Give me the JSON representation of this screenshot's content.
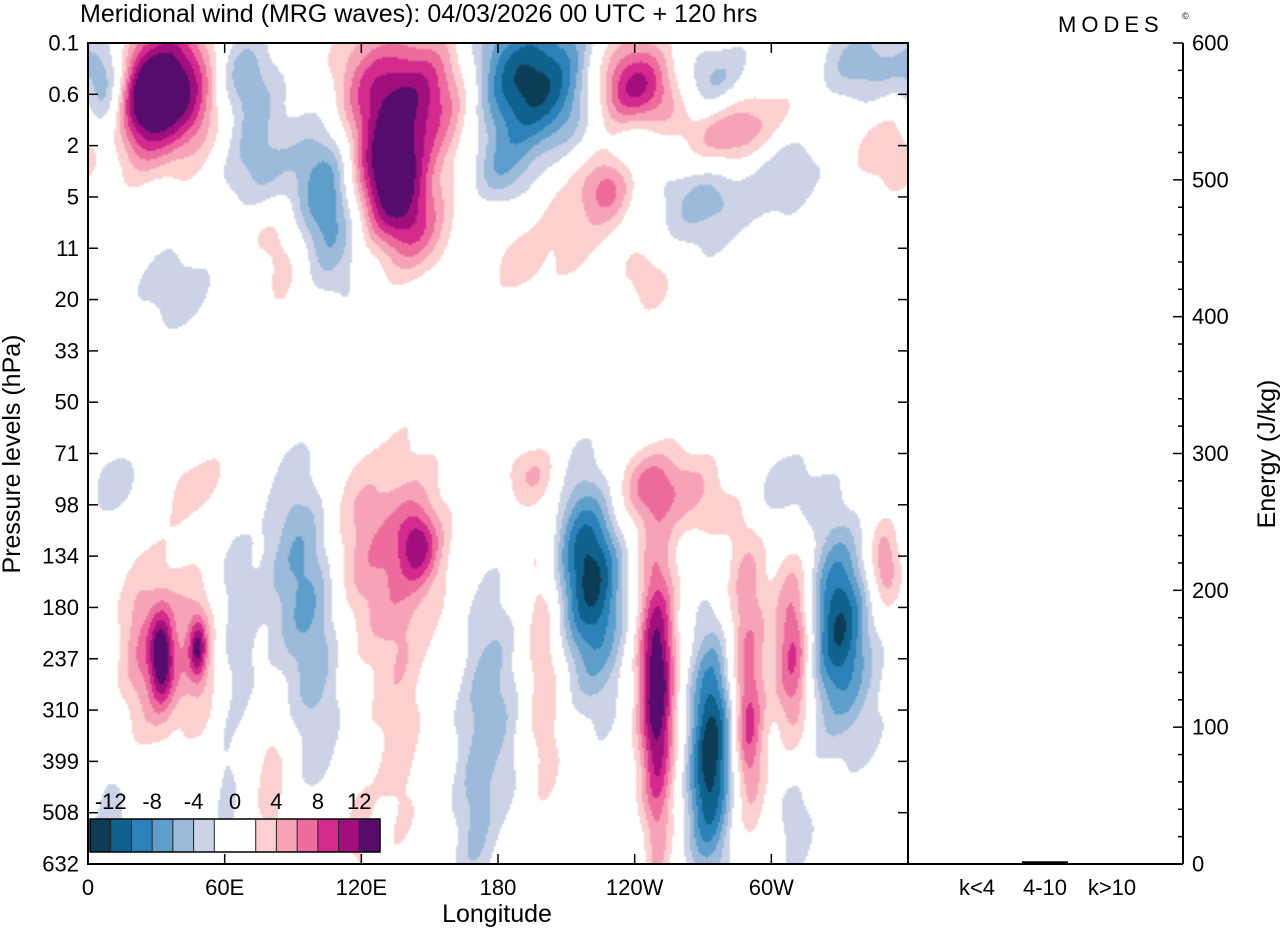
{
  "header": {
    "title": "Meridional wind (MRG waves):  04/03/2026  00 UTC  + 120 hrs",
    "brand": "MODES",
    "brand_mark": "©"
  },
  "chart_data": [
    {
      "type": "heatmap",
      "title": "Meridional wind (MRG waves):  04/03/2026  00 UTC  + 120 hrs",
      "xlabel": "Longitude",
      "ylabel": "Pressure levels (hPa)",
      "x_ticks": [
        "0",
        "60E",
        "120E",
        "180",
        "120W",
        "60W"
      ],
      "x_tick_values": [
        0,
        60,
        120,
        180,
        240,
        300
      ],
      "xlim": [
        0,
        360
      ],
      "y_levels": [
        "0.1",
        "0.6",
        "2",
        "5",
        "11",
        "20",
        "33",
        "50",
        "71",
        "98",
        "134",
        "180",
        "237",
        "310",
        "399",
        "508",
        "632"
      ],
      "colorbar": {
        "tick_labels": [
          "-12",
          "-8",
          "-4",
          "0",
          "4",
          "8",
          "12"
        ],
        "tick_values": [
          -12,
          -8,
          -4,
          0,
          4,
          8,
          12
        ],
        "bounds": [
          -14,
          -12,
          -10,
          -8,
          -6,
          -4,
          -2,
          2,
          4,
          6,
          8,
          10,
          12,
          14
        ],
        "colors": [
          "#0d3d56",
          "#10628e",
          "#2a82b8",
          "#5d9ecb",
          "#9cbad9",
          "#ccd3e6",
          "#ffffff",
          "#fbd0cf",
          "#f7a3b7",
          "#ee6c9d",
          "#d42a8d",
          "#a10f7d",
          "#560c6c"
        ],
        "location": "lower-left"
      },
      "features": [
        {
          "lon": 40,
          "lev": 0.8,
          "sx": 18,
          "sy": 0.9,
          "amp": 13
        },
        {
          "lon": 23,
          "lev": 1.2,
          "sx": 10,
          "sy": 0.8,
          "amp": 9
        },
        {
          "lon": 9,
          "lev": 1.0,
          "sx": 7,
          "sy": 0.8,
          "amp": -8
        },
        {
          "lon": 65,
          "lev": 0.6,
          "sx": 12,
          "sy": 0.7,
          "amp": -8
        },
        {
          "lon": 75,
          "lev": 2.3,
          "sx": 14,
          "sy": 1.0,
          "amp": -5
        },
        {
          "lon": 105,
          "lev": 3.0,
          "sx": 10,
          "sy": 1.2,
          "amp": -8
        },
        {
          "lon": 140,
          "lev": 1.0,
          "sx": 22,
          "sy": 0.9,
          "amp": 12
        },
        {
          "lon": 133,
          "lev": 2.7,
          "sx": 12,
          "sy": 0.8,
          "amp": 13
        },
        {
          "lon": 145,
          "lev": 3.7,
          "sx": 10,
          "sy": 0.6,
          "amp": 5
        },
        {
          "lon": 195,
          "lev": 0.8,
          "sx": 20,
          "sy": 1.0,
          "amp": -14
        },
        {
          "lon": 180,
          "lev": 2.5,
          "sx": 10,
          "sy": 0.5,
          "amp": -4
        },
        {
          "lon": 240,
          "lev": 0.9,
          "sx": 15,
          "sy": 0.7,
          "amp": 12
        },
        {
          "lon": 243,
          "lev": 1.8,
          "sx": 10,
          "sy": 0.5,
          "amp": -5
        },
        {
          "lon": 275,
          "lev": 0.9,
          "sx": 13,
          "sy": 0.6,
          "amp": -9
        },
        {
          "lon": 285,
          "lev": 1.7,
          "sx": 18,
          "sy": 0.7,
          "amp": 11
        },
        {
          "lon": 305,
          "lev": 2.2,
          "sx": 15,
          "sy": 0.6,
          "amp": -6
        },
        {
          "lon": 280,
          "lev": 2.7,
          "sx": 15,
          "sy": 0.6,
          "amp": -4
        },
        {
          "lon": 345,
          "lev": 0.4,
          "sx": 18,
          "sy": 0.6,
          "amp": -5
        },
        {
          "lon": 350,
          "lev": 2.1,
          "sx": 12,
          "sy": 0.6,
          "amp": 4
        },
        {
          "lon": 228,
          "lev": 2.8,
          "sx": 8,
          "sy": 0.5,
          "amp": 6
        },
        {
          "lon": 215,
          "lev": 3.2,
          "sx": 18,
          "sy": 1.0,
          "amp": 3
        },
        {
          "lon": 265,
          "lev": 3.2,
          "sx": 20,
          "sy": 0.7,
          "amp": -3
        },
        {
          "lon": 75,
          "lev": 3.6,
          "sx": 10,
          "sy": 0.5,
          "amp": 3
        },
        {
          "lon": 38,
          "lev": 4.8,
          "sx": 18,
          "sy": 0.6,
          "amp": -3
        },
        {
          "lon": 85,
          "lev": 4.4,
          "sx": 8,
          "sy": 0.9,
          "amp": 3
        },
        {
          "lon": 12,
          "lev": 8.6,
          "sx": 10,
          "sy": 0.5,
          "amp": -3
        },
        {
          "lon": 50,
          "lev": 8.6,
          "sx": 14,
          "sy": 0.6,
          "amp": 3
        },
        {
          "lon": 30,
          "lev": 12.0,
          "sx": 8,
          "sy": 1.2,
          "amp": 6
        },
        {
          "lon": 32,
          "lev": 12.0,
          "sx": 3.5,
          "sy": 0.6,
          "amp": 9
        },
        {
          "lon": 48,
          "lev": 11.8,
          "sx": 7,
          "sy": 1.0,
          "amp": 5
        },
        {
          "lon": 48,
          "lev": 11.8,
          "sx": 2.5,
          "sy": 0.4,
          "amp": 7
        },
        {
          "lon": 20,
          "lev": 11.5,
          "sx": 6,
          "sy": 1.2,
          "amp": 3
        },
        {
          "lon": 65,
          "lev": 11.2,
          "sx": 6,
          "sy": 1.5,
          "amp": -3
        },
        {
          "lon": 92,
          "lev": 10.3,
          "sx": 12,
          "sy": 1.6,
          "amp": -6
        },
        {
          "lon": 100,
          "lev": 13.0,
          "sx": 8,
          "sy": 2.0,
          "amp": -3
        },
        {
          "lon": 130,
          "lev": 9.8,
          "sx": 18,
          "sy": 1.4,
          "amp": 6
        },
        {
          "lon": 145,
          "lev": 9.8,
          "sx": 6,
          "sy": 0.5,
          "amp": 7
        },
        {
          "lon": 138,
          "lev": 13.0,
          "sx": 8,
          "sy": 2.0,
          "amp": 3
        },
        {
          "lon": 175,
          "lev": 13.0,
          "sx": 10,
          "sy": 1.8,
          "amp": -5
        },
        {
          "lon": 170,
          "lev": 15.5,
          "sx": 6,
          "sy": 1.2,
          "amp": -3
        },
        {
          "lon": 200,
          "lev": 12.0,
          "sx": 6,
          "sy": 2.5,
          "amp": 4
        },
        {
          "lon": 222,
          "lev": 10.5,
          "sx": 10,
          "sy": 1.5,
          "amp": -11
        },
        {
          "lon": 215,
          "lev": 9.5,
          "sx": 12,
          "sy": 1.0,
          "amp": -4
        },
        {
          "lon": 230,
          "lev": 9.0,
          "sx": 20,
          "sy": 0.8,
          "amp": 3
        },
        {
          "lon": 250,
          "lev": 12.3,
          "sx": 6,
          "sy": 1.7,
          "amp": 13
        },
        {
          "lon": 250,
          "lev": 15.0,
          "sx": 4,
          "sy": 2.0,
          "amp": 3
        },
        {
          "lon": 275,
          "lev": 13.5,
          "sx": 7,
          "sy": 1.5,
          "amp": -12
        },
        {
          "lon": 270,
          "lev": 15.0,
          "sx": 6,
          "sy": 1.2,
          "amp": -4
        },
        {
          "lon": 290,
          "lev": 12.0,
          "sx": 7,
          "sy": 2.2,
          "amp": 7
        },
        {
          "lon": 290,
          "lev": 13.5,
          "sx": 4,
          "sy": 0.8,
          "amp": 4
        },
        {
          "lon": 310,
          "lev": 12.0,
          "sx": 6,
          "sy": 1.3,
          "amp": 11
        },
        {
          "lon": 325,
          "lev": 12.3,
          "sx": 18,
          "sy": 1.5,
          "amp": -4
        },
        {
          "lon": 330,
          "lev": 11.2,
          "sx": 8,
          "sy": 1.2,
          "amp": -9
        },
        {
          "lon": 350,
          "lev": 10.2,
          "sx": 5,
          "sy": 0.6,
          "amp": 6
        },
        {
          "lon": 305,
          "lev": 8.7,
          "sx": 12,
          "sy": 0.6,
          "amp": -4
        },
        {
          "lon": 270,
          "lev": 8.8,
          "sx": 10,
          "sy": 0.6,
          "amp": 3
        },
        {
          "lon": 248,
          "lev": 8.6,
          "sx": 10,
          "sy": 0.5,
          "amp": 5
        },
        {
          "lon": 195,
          "lev": 8.4,
          "sx": 10,
          "sy": 0.4,
          "amp": 3
        },
        {
          "lon": 60,
          "lev": 15.0,
          "sx": 4,
          "sy": 1.2,
          "amp": -3
        },
        {
          "lon": 10,
          "lev": 15.0,
          "sx": 6,
          "sy": 1.0,
          "amp": -3
        },
        {
          "lon": 80,
          "lev": 14.5,
          "sx": 5,
          "sy": 1.0,
          "amp": 4
        },
        {
          "lon": 118,
          "lev": 15.5,
          "sx": 6,
          "sy": 1.2,
          "amp": 3
        },
        {
          "lon": 310,
          "lev": 15.2,
          "sx": 6,
          "sy": 0.8,
          "amp": -3
        },
        {
          "lon": 190,
          "lev": 4.3,
          "sx": 8,
          "sy": 0.5,
          "amp": 3
        },
        {
          "lon": 245,
          "lev": 4.6,
          "sx": 8,
          "sy": 0.5,
          "amp": 3
        },
        {
          "lon": 220,
          "lev": 5.2,
          "sx": 6,
          "sy": 0.3,
          "amp": -3
        }
      ]
    },
    {
      "type": "bar",
      "ylabel": "Energy (J/kg)",
      "categories": [
        "k<4",
        "4-10",
        "k>10"
      ],
      "values": [
        0.5,
        2.0,
        0.5
      ],
      "ylim": [
        0,
        600
      ],
      "y_ticks": [
        0,
        100,
        200,
        300,
        400,
        500,
        600
      ],
      "y_tick_labels": [
        "0",
        "100",
        "200",
        "300",
        "400",
        "500",
        "600"
      ]
    }
  ]
}
